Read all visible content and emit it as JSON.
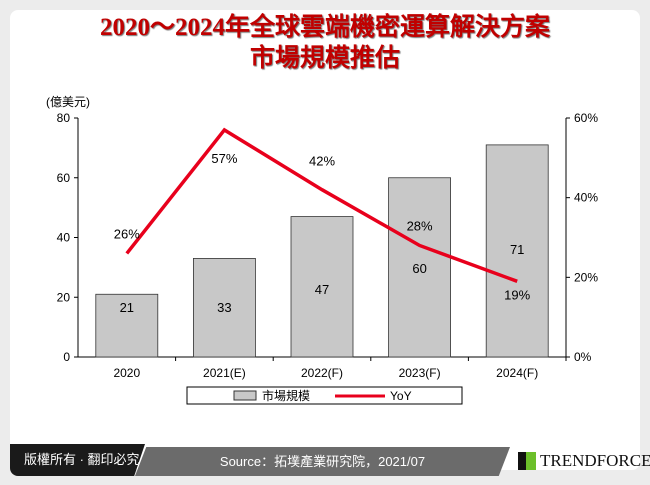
{
  "title": {
    "line1": "2020～2024年全球雲端機密運算解決方案",
    "line2": "市場規模推估"
  },
  "chart_data": {
    "type": "bar+line",
    "categories": [
      "2020",
      "2021(E)",
      "2022(F)",
      "2023(F)",
      "2024(F)"
    ],
    "series": [
      {
        "name": "市場規模",
        "type": "bar",
        "axis": "left",
        "values": [
          21,
          33,
          47,
          60,
          71
        ],
        "labels": [
          "21",
          "33",
          "47",
          "60",
          "71"
        ],
        "color": "#c8c8c8"
      },
      {
        "name": "YoY",
        "type": "line",
        "axis": "right",
        "values": [
          26,
          57,
          42,
          28,
          19
        ],
        "labels": [
          "26%",
          "57%",
          "42%",
          "28%",
          "19%"
        ],
        "color": "#e8001c"
      }
    ],
    "ylabel": "(億美元)",
    "ylim": [
      0,
      80
    ],
    "yticks": [
      "0",
      "20",
      "40",
      "60",
      "80"
    ],
    "y2lim": [
      0,
      60
    ],
    "y2ticks": [
      "0%",
      "20%",
      "40%",
      "60%"
    ],
    "legend": "bottom"
  },
  "footer": {
    "copyright": "版權所有 · 翻印必究",
    "source": "Source：拓墣產業研究院，2021/07",
    "brand": "TRENDFORCE"
  }
}
